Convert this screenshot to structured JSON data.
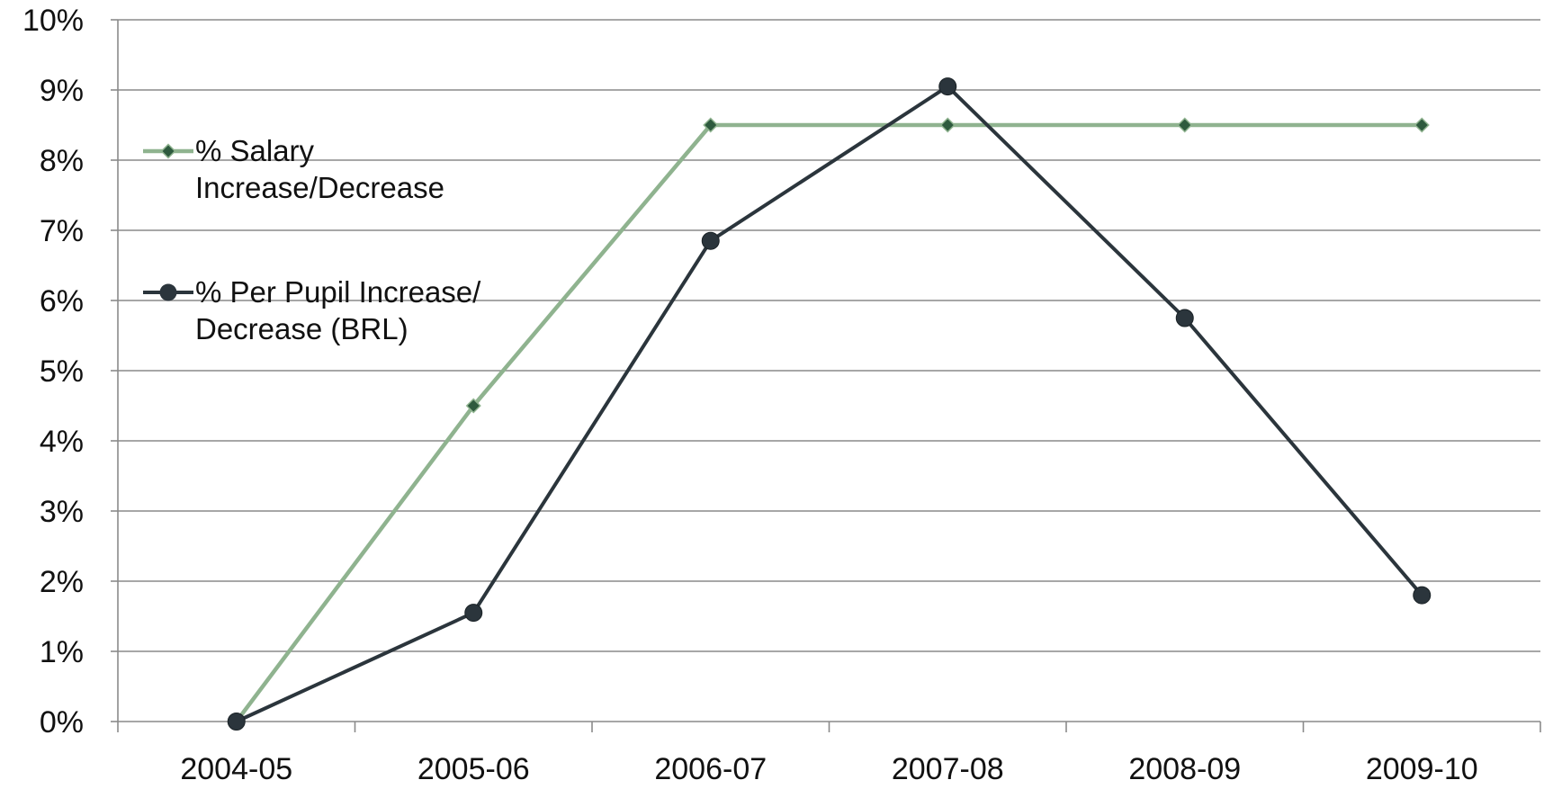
{
  "chart_data": {
    "type": "line",
    "title": "",
    "xlabel": "",
    "ylabel": "",
    "categories": [
      "2004-05",
      "2005-06",
      "2006-07",
      "2007-08",
      "2008-09",
      "2009-10"
    ],
    "ylim": [
      0,
      10
    ],
    "yticks": [
      "0%",
      "1%",
      "2%",
      "3%",
      "4%",
      "5%",
      "6%",
      "7%",
      "8%",
      "9%",
      "10%"
    ],
    "grid": true,
    "legend_position": "top-left",
    "series": [
      {
        "name": "% Salary Increase/Decrease",
        "legend_lines": [
          "% Salary",
          "Increase/Decrease"
        ],
        "values": [
          0,
          4.5,
          8.5,
          8.5,
          8.5,
          8.5
        ],
        "line_color": "#8fb38f",
        "marker": "diamond",
        "marker_color": "#2e5a3e"
      },
      {
        "name": "% Per Pupil Increase/ Decrease (BRL)",
        "legend_lines": [
          "% Per Pupil Increase/",
          "Decrease (BRL)"
        ],
        "values": [
          0,
          1.55,
          6.85,
          9.05,
          5.75,
          1.8
        ],
        "line_color": "#2b353c",
        "marker": "circle",
        "marker_color": "#2b353c"
      }
    ]
  }
}
